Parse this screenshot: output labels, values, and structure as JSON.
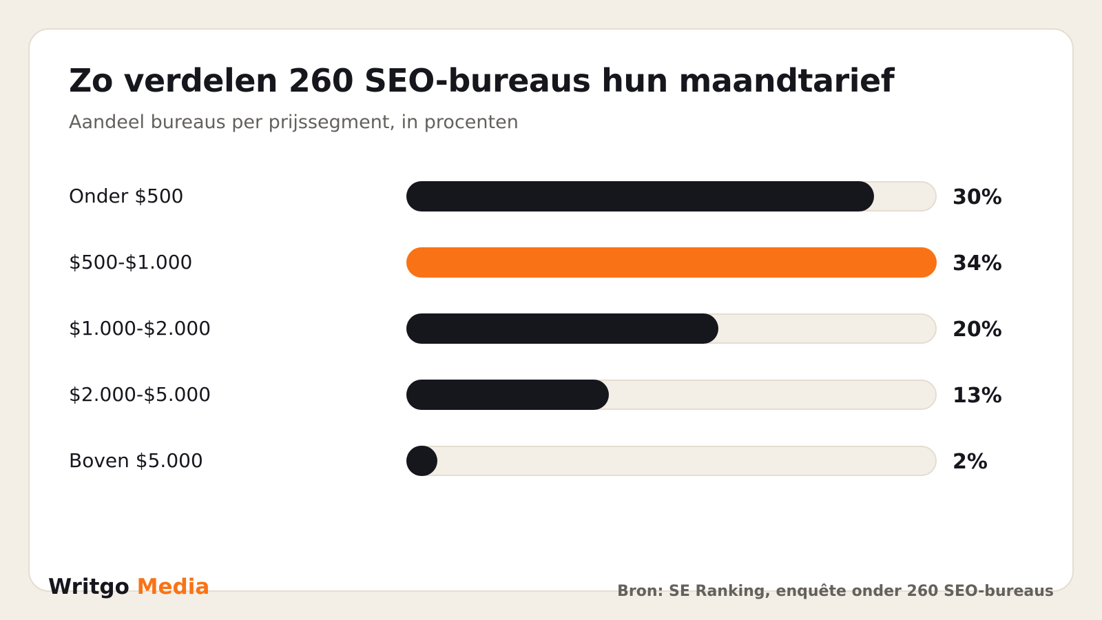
{
  "chart_data": {
    "type": "bar",
    "orientation": "horizontal",
    "title": "Zo verdelen 260 SEO-bureaus hun maandtarief",
    "subtitle": "Aandeel bureaus per prijssegment, in procenten",
    "categories": [
      "Onder $500",
      "$500-$1.000",
      "$1.000-$2.000",
      "$2.000-$5.000",
      "Boven $5.000"
    ],
    "values": [
      30,
      34,
      20,
      13,
      2
    ],
    "value_labels": [
      "30%",
      "34%",
      "20%",
      "13%",
      "2%"
    ],
    "highlight_index": 1,
    "xlim": [
      0,
      34
    ],
    "grid": false,
    "colors": {
      "bar": "#16161d",
      "highlight": "#f97316",
      "track": "#f4efe6"
    }
  },
  "footer": {
    "brand_primary": "Writgo",
    "brand_accent": "Media",
    "source": "Bron: SE Ranking, enquête onder 260 SEO-bureaus"
  }
}
